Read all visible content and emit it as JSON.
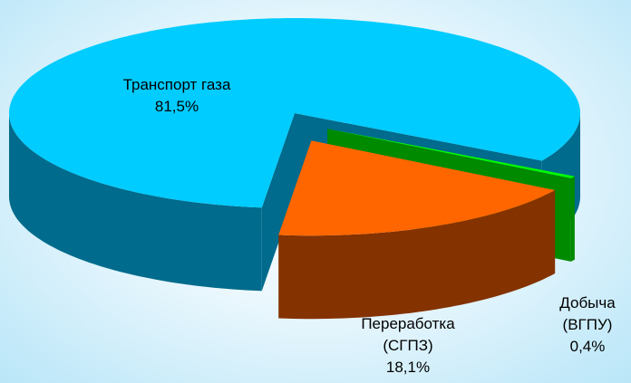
{
  "chart_data": {
    "type": "pie3d",
    "categories": [
      "Транспорт газа",
      "Переработка (СГПЗ)",
      "Добыча (ВГПУ)"
    ],
    "values": [
      81.5,
      18.1,
      0.4
    ],
    "value_labels": [
      "81,5%",
      "18,1%",
      "0,4%"
    ],
    "colors": [
      "#00ccff",
      "#ff6600",
      "#00ff00"
    ],
    "side_colors": [
      "#006b8c",
      "#843200",
      "#008a00"
    ],
    "exploded": [
      false,
      true,
      true
    ]
  }
}
